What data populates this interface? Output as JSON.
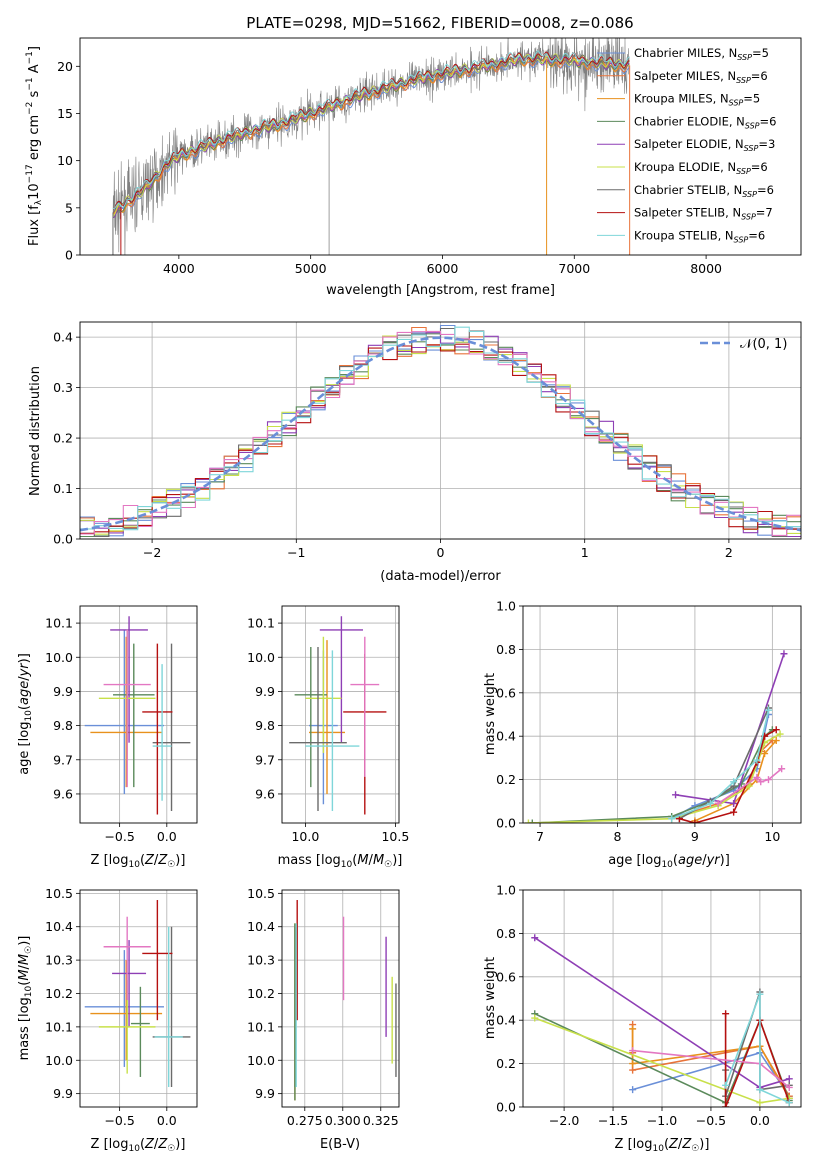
{
  "figure": {
    "title": "PLATE=0298, MJD=51662, FIBERID=0008, z=0.086"
  },
  "colors": {
    "grid": "#b0b0b0",
    "axis": "#000000",
    "series": [
      "#6a8fd8",
      "#e8743b",
      "#e8911d",
      "#5b8a5b",
      "#8e3fb5",
      "#c8e04a",
      "#6b6b6b",
      "#b51010",
      "#7fd6d9"
    ],
    "gray": "#808080",
    "pink": "#e377c2"
  },
  "chart_data": [
    {
      "id": "spectrum",
      "type": "line",
      "xlabel": "wavelength [Angstrom, rest frame]",
      "ylabel": "Flux [f_λ10^-17 erg cm^-2 s^-1 A^-1]",
      "xlim": [
        3250,
        8720
      ],
      "ylim": [
        0,
        23
      ],
      "xticks": [
        4000,
        5000,
        6000,
        7000,
        8000
      ],
      "yticks": [
        0,
        5,
        10,
        15,
        20
      ],
      "grid": false,
      "legend_position": "right",
      "continuum": {
        "x": [
          3500,
          3600,
          3700,
          3800,
          3900,
          4000,
          4200,
          4400,
          4600,
          4800,
          5000,
          5200,
          5400,
          5600,
          5800,
          6000,
          6200,
          6400,
          6600,
          6800,
          7000,
          7200,
          7400
        ],
        "y": [
          4.5,
          5.5,
          6.5,
          7.8,
          9.5,
          10.5,
          11.5,
          12.5,
          13.3,
          14.0,
          15.0,
          16.0,
          17.0,
          17.8,
          18.6,
          19.2,
          19.7,
          20.2,
          20.8,
          20.7,
          20.6,
          20.3,
          20.1
        ]
      },
      "legend": [
        {
          "label": "Chabrier MILES, N",
          "sub": "SSP",
          "suffix": "=5",
          "color": "#6a8fd8"
        },
        {
          "label": "Salpeter MILES, N",
          "sub": "SSP",
          "suffix": "=6",
          "color": "#e8743b"
        },
        {
          "label": "Kroupa MILES, N",
          "sub": "SSP",
          "suffix": "=5",
          "color": "#e8911d"
        },
        {
          "label": "Chabrier ELODIE, N",
          "sub": "SSP",
          "suffix": "=6",
          "color": "#5b8a5b"
        },
        {
          "label": "Salpeter ELODIE, N",
          "sub": "SSP",
          "suffix": "=3",
          "color": "#8e3fb5"
        },
        {
          "label": "Kroupa ELODIE, N",
          "sub": "SSP",
          "suffix": "=6",
          "color": "#c8e04a"
        },
        {
          "label": "Chabrier STELIB, N",
          "sub": "SSP",
          "suffix": "=6",
          "color": "#6b6b6b"
        },
        {
          "label": "Salpeter STELIB, N",
          "sub": "SSP",
          "suffix": "=7",
          "color": "#b51010"
        },
        {
          "label": "Kroupa STELIB, N",
          "sub": "SSP",
          "suffix": "=6",
          "color": "#7fd6d9"
        }
      ]
    },
    {
      "id": "residuals",
      "type": "step",
      "xlabel": "(data-model)/error",
      "ylabel": "Normed distribution",
      "xlim": [
        -2.5,
        2.5
      ],
      "ylim": [
        0,
        0.43
      ],
      "xticks": [
        -2,
        -1,
        0,
        1,
        2
      ],
      "xticklabels": [
        "−2",
        "−1",
        "0",
        "1",
        "2"
      ],
      "yticks": [
        0.0,
        0.1,
        0.2,
        0.3,
        0.4
      ],
      "yticklabels": [
        "0.0",
        "0.1",
        "0.2",
        "0.3",
        "0.4"
      ],
      "grid": true,
      "legend_label": "𝒩(0, 1)",
      "legend_position": "top-right",
      "bin_width": 0.1,
      "normal": {
        "mean": 0,
        "sigma": 1,
        "color": "#6a8fd8"
      }
    },
    {
      "id": "age-vs-Z",
      "type": "errorbar",
      "xlabel": "Z [log10(Z/Z☉)]",
      "ylabel": "age  [log10(age/yr)]",
      "xlim": [
        -0.92,
        0.32
      ],
      "ylim": [
        9.515,
        10.15
      ],
      "xticks": [
        -0.5,
        0.0
      ],
      "xticklabels": [
        "−0.5",
        "0.0"
      ],
      "yticks": [
        9.6,
        9.7,
        9.8,
        9.9,
        10.0,
        10.1
      ],
      "yticklabels": [
        "9.6",
        "9.7",
        "9.8",
        "9.9",
        "10.0",
        "10.1"
      ],
      "grid": true,
      "points": [
        {
          "x": -0.45,
          "y": 9.8,
          "xerr": 0.42,
          "yerr": [
            9.6,
            10.08
          ],
          "color": "#6a8fd8"
        },
        {
          "x": -0.43,
          "y": 9.78,
          "xerr": 0.38,
          "yerr": [
            9.62,
            10.06
          ],
          "color": "#e8911d"
        },
        {
          "x": -0.35,
          "y": 9.89,
          "xerr": 0.22,
          "yerr": [
            9.62,
            10.04
          ],
          "color": "#5b8a5b"
        },
        {
          "x": -0.4,
          "y": 10.08,
          "xerr": 0.2,
          "yerr": [
            9.75,
            10.12
          ],
          "color": "#8e3fb5"
        },
        {
          "x": -0.42,
          "y": 9.88,
          "xerr": 0.3,
          "yerr": [
            9.7,
            10.08
          ],
          "color": "#c8e04a"
        },
        {
          "x": 0.05,
          "y": 9.75,
          "xerr": 0.2,
          "yerr": [
            9.55,
            10.04
          ],
          "color": "#6b6b6b"
        },
        {
          "x": -0.1,
          "y": 9.84,
          "xerr": 0.16,
          "yerr": [
            9.54,
            10.04
          ],
          "color": "#b51010"
        },
        {
          "x": -0.42,
          "y": 9.92,
          "xerr": 0.25,
          "yerr": [
            9.62,
            10.08
          ],
          "color": "#e377c2"
        },
        {
          "x": -0.05,
          "y": 9.74,
          "xerr": 0.1,
          "yerr": [
            9.58,
            9.98
          ],
          "color": "#7fd6d9"
        }
      ]
    },
    {
      "id": "age-vs-mass",
      "type": "errorbar",
      "xlabel": "mass [log10(M/M☉)]",
      "xlim": [
        9.87,
        10.52
      ],
      "ylim": [
        9.515,
        10.15
      ],
      "xticks": [
        10.0,
        10.5
      ],
      "xticklabels": [
        "10.0",
        "10.5"
      ],
      "yticks": [
        9.6,
        9.7,
        9.8,
        9.9,
        10.0,
        10.1
      ],
      "yticklabels": [
        "9.6",
        "9.7",
        "9.8",
        "9.9",
        "10.0",
        "10.1"
      ],
      "grid": true,
      "points": [
        {
          "x": 10.1,
          "y": 9.8,
          "xerr": 0.08,
          "yerr": [
            9.57,
            10.02
          ],
          "color": "#6a8fd8"
        },
        {
          "x": 10.12,
          "y": 9.78,
          "xerr": 0.1,
          "yerr": [
            9.6,
            10.05
          ],
          "color": "#e8911d"
        },
        {
          "x": 10.03,
          "y": 9.89,
          "xerr": 0.09,
          "yerr": [
            9.62,
            10.03
          ],
          "color": "#5b8a5b"
        },
        {
          "x": 10.2,
          "y": 10.08,
          "xerr": 0.12,
          "yerr": [
            9.75,
            10.12
          ],
          "color": "#8e3fb5"
        },
        {
          "x": 10.1,
          "y": 9.88,
          "xerr": 0.1,
          "yerr": [
            9.72,
            10.06
          ],
          "color": "#c8e04a"
        },
        {
          "x": 10.07,
          "y": 9.75,
          "xerr": 0.16,
          "yerr": [
            9.55,
            10.03
          ],
          "color": "#6b6b6b"
        },
        {
          "x": 10.33,
          "y": 9.84,
          "xerr": 0.12,
          "yerr": [
            9.54,
            10.01
          ],
          "color": "#b51010"
        },
        {
          "x": 10.33,
          "y": 9.92,
          "xerr": 0.08,
          "yerr": [
            9.65,
            10.06
          ],
          "color": "#e377c2"
        },
        {
          "x": 10.15,
          "y": 9.74,
          "xerr": 0.15,
          "yerr": [
            9.55,
            10.02
          ],
          "color": "#7fd6d9"
        }
      ]
    },
    {
      "id": "massweight-vs-age",
      "type": "line",
      "xlabel": "age  [log10(age/yr)]",
      "ylabel": "mass weight",
      "xlim": [
        6.78,
        10.37
      ],
      "ylim": [
        0,
        1.0
      ],
      "xticks": [
        7,
        8,
        9,
        10
      ],
      "yticks": [
        0.0,
        0.2,
        0.4,
        0.6,
        0.8,
        1.0
      ],
      "yticklabels": [
        "0.0",
        "0.2",
        "0.4",
        "0.6",
        "0.8",
        "1.0"
      ],
      "grid": true,
      "series": [
        {
          "color": "#6a8fd8",
          "x": [
            8.7,
            9.0,
            9.5,
            9.8,
            9.95
          ],
          "y": [
            0.02,
            0.08,
            0.15,
            0.25,
            0.5
          ]
        },
        {
          "color": "#e8743b",
          "x": [
            8.7,
            9.3,
            9.7,
            9.85,
            10.0
          ],
          "y": [
            0.02,
            0.09,
            0.18,
            0.33,
            0.38
          ]
        },
        {
          "color": "#e8911d",
          "x": [
            9.0,
            9.5,
            9.8,
            9.9,
            10.05
          ],
          "y": [
            0.01,
            0.09,
            0.2,
            0.32,
            0.38
          ]
        },
        {
          "color": "#5b8a5b",
          "x": [
            6.9,
            8.7,
            9.2,
            9.6,
            9.9,
            10.0
          ],
          "y": [
            0.0,
            0.03,
            0.1,
            0.18,
            0.4,
            0.43
          ]
        },
        {
          "color": "#8e3fb5",
          "x": [
            8.75,
            9.5,
            10.15
          ],
          "y": [
            0.13,
            0.09,
            0.78
          ]
        },
        {
          "color": "#c8e04a",
          "x": [
            6.85,
            8.7,
            9.3,
            9.7,
            9.9,
            10.1
          ],
          "y": [
            0.0,
            0.02,
            0.08,
            0.17,
            0.37,
            0.41
          ]
        },
        {
          "color": "#6b6b6b",
          "x": [
            8.8,
            9.2,
            9.5,
            9.95
          ],
          "y": [
            0.02,
            0.1,
            0.17,
            0.53
          ]
        },
        {
          "color": "#b51010",
          "x": [
            8.8,
            9.0,
            9.5,
            9.8,
            9.9,
            10.05
          ],
          "y": [
            0.02,
            0.0,
            0.05,
            0.28,
            0.4,
            0.43
          ]
        },
        {
          "color": "#e377c2",
          "x": [
            9.3,
            9.8,
            9.85,
            9.95,
            10.12
          ],
          "y": [
            0.09,
            0.21,
            0.19,
            0.2,
            0.25
          ]
        },
        {
          "color": "#7fd6d9",
          "x": [
            8.7,
            9.2,
            9.5,
            9.8,
            9.95
          ],
          "y": [
            0.02,
            0.09,
            0.19,
            0.29,
            0.52
          ]
        }
      ]
    },
    {
      "id": "mass-vs-Z",
      "type": "errorbar",
      "xlabel": "Z [log10(Z/Z☉)]",
      "ylabel": "mass [log10(M/M☉)]",
      "xlim": [
        -0.92,
        0.32
      ],
      "ylim": [
        9.86,
        10.51
      ],
      "xticks": [
        -0.5,
        0.0
      ],
      "xticklabels": [
        "−0.5",
        "0.0"
      ],
      "yticks": [
        9.9,
        10.0,
        10.1,
        10.2,
        10.3,
        10.4,
        10.5
      ],
      "yticklabels": [
        "9.9",
        "10.0",
        "10.1",
        "10.2",
        "10.3",
        "10.4",
        "10.5"
      ],
      "grid": true,
      "points": [
        {
          "x": -0.45,
          "y": 10.16,
          "xerr": 0.42,
          "yerr": [
            9.98,
            10.33
          ],
          "color": "#6a8fd8"
        },
        {
          "x": -0.43,
          "y": 10.14,
          "xerr": 0.38,
          "yerr": [
            10.0,
            10.3
          ],
          "color": "#e8911d"
        },
        {
          "x": -0.28,
          "y": 10.11,
          "xerr": 0.1,
          "yerr": [
            9.95,
            10.22
          ],
          "color": "#5b8a5b"
        },
        {
          "x": -0.4,
          "y": 10.26,
          "xerr": 0.18,
          "yerr": [
            10.1,
            10.36
          ],
          "color": "#8e3fb5"
        },
        {
          "x": -0.42,
          "y": 10.1,
          "xerr": 0.3,
          "yerr": [
            9.96,
            10.24
          ],
          "color": "#c8e04a"
        },
        {
          "x": 0.05,
          "y": 10.07,
          "xerr": 0.2,
          "yerr": [
            9.92,
            10.4
          ],
          "color": "#6b6b6b"
        },
        {
          "x": -0.1,
          "y": 10.32,
          "xerr": 0.16,
          "yerr": [
            10.12,
            10.48
          ],
          "color": "#b51010"
        },
        {
          "x": -0.42,
          "y": 10.34,
          "xerr": 0.25,
          "yerr": [
            10.18,
            10.43
          ],
          "color": "#e377c2"
        },
        {
          "x": 0.02,
          "y": 10.07,
          "xerr": 0.15,
          "yerr": [
            9.92,
            10.4
          ],
          "color": "#7fd6d9"
        }
      ]
    },
    {
      "id": "mass-vs-ebv",
      "type": "errorbar",
      "xlabel": "E(B-V)",
      "xlim": [
        0.26,
        0.337
      ],
      "ylim": [
        9.86,
        10.51
      ],
      "xticks": [
        0.275,
        0.3,
        0.325
      ],
      "xticklabels": [
        "0.275",
        "0.300",
        "0.325"
      ],
      "yticks": [
        9.9,
        10.0,
        10.1,
        10.2,
        10.3,
        10.4,
        10.5
      ],
      "yticklabels": [
        "9.9",
        "10.0",
        "10.1",
        "10.2",
        "10.3",
        "10.4",
        "10.5"
      ],
      "grid": true,
      "points": [
        {
          "x": 0.2685,
          "y": 10.16,
          "yerr": [
            9.92,
            10.4
          ],
          "color": "#6a8fd8"
        },
        {
          "x": 0.2685,
          "y": 10.14,
          "yerr": [
            9.88,
            10.41
          ],
          "color": "#e8911d"
        },
        {
          "x": 0.2685,
          "y": 10.11,
          "yerr": [
            9.88,
            10.41
          ],
          "color": "#5b8a5b"
        },
        {
          "x": 0.3285,
          "y": 10.26,
          "yerr": [
            10.07,
            10.37
          ],
          "color": "#8e3fb5"
        },
        {
          "x": 0.3325,
          "y": 10.1,
          "yerr": [
            9.99,
            10.25
          ],
          "color": "#c8e04a"
        },
        {
          "x": 0.335,
          "y": 10.07,
          "yerr": [
            9.95,
            10.23
          ],
          "color": "#6b6b6b"
        },
        {
          "x": 0.27,
          "y": 10.32,
          "yerr": [
            10.12,
            10.48
          ],
          "color": "#b51010"
        },
        {
          "x": 0.3005,
          "y": 10.34,
          "yerr": [
            10.18,
            10.43
          ],
          "color": "#e377c2"
        },
        {
          "x": 0.2693,
          "y": 10.07,
          "yerr": [
            9.92,
            10.41
          ],
          "color": "#7fd6d9"
        }
      ]
    },
    {
      "id": "massweight-vs-Z",
      "type": "line",
      "xlabel": "Z [log10(Z/Z☉)]",
      "ylabel": "mass weight",
      "xlim": [
        -2.42,
        0.42
      ],
      "ylim": [
        0,
        1.0
      ],
      "xticks": [
        -2.0,
        -1.5,
        -1.0,
        -0.5,
        0.0
      ],
      "xticklabels": [
        "−2.0",
        "−1.5",
        "−1.0",
        "−0.5",
        "0.0"
      ],
      "yticks": [
        0.0,
        0.2,
        0.4,
        0.6,
        0.8,
        1.0
      ],
      "yticklabels": [
        "0.0",
        "0.2",
        "0.4",
        "0.6",
        "0.8",
        "1.0"
      ],
      "grid": true,
      "series": [
        {
          "color": "#6a8fd8",
          "x": [
            -1.3,
            0.0,
            0.3
          ],
          "y": [
            0.08,
            0.25,
            0.05
          ]
        },
        {
          "color": "#e8743b",
          "x": [
            -1.3,
            -1.3,
            -1.3,
            0.0,
            0.3
          ],
          "y": [
            0.38,
            0.25,
            0.17,
            0.28,
            0.05
          ]
        },
        {
          "color": "#e8911d",
          "x": [
            -1.3,
            -1.3,
            0.0,
            0.3
          ],
          "y": [
            0.36,
            0.2,
            0.28,
            0.04
          ]
        },
        {
          "color": "#5b8a5b",
          "x": [
            -2.3,
            -0.35,
            0.0,
            0.3
          ],
          "y": [
            0.43,
            0.02,
            0.4,
            0.03
          ]
        },
        {
          "color": "#8e3fb5",
          "x": [
            -2.3,
            0.0,
            0.3
          ],
          "y": [
            0.78,
            0.09,
            0.13
          ]
        },
        {
          "color": "#c8e04a",
          "x": [
            -2.3,
            0.0,
            0.3
          ],
          "y": [
            0.41,
            0.02,
            0.04
          ]
        },
        {
          "color": "#6b6b6b",
          "x": [
            -0.35,
            -0.35,
            0.0,
            0.0,
            0.3
          ],
          "y": [
            0.17,
            0.05,
            0.53,
            0.08,
            0.1
          ]
        },
        {
          "color": "#b51010",
          "x": [
            -0.35,
            -0.35,
            0.0,
            0.3
          ],
          "y": [
            0.43,
            0.0,
            0.4,
            0.02
          ]
        },
        {
          "color": "#e377c2",
          "x": [
            -1.3,
            0.0,
            0.3
          ],
          "y": [
            0.26,
            0.2,
            0.09
          ]
        },
        {
          "color": "#7fd6d9",
          "x": [
            -0.35,
            0.0,
            0.0,
            0.3
          ],
          "y": [
            0.1,
            0.52,
            0.08,
            0.02
          ]
        }
      ]
    }
  ]
}
